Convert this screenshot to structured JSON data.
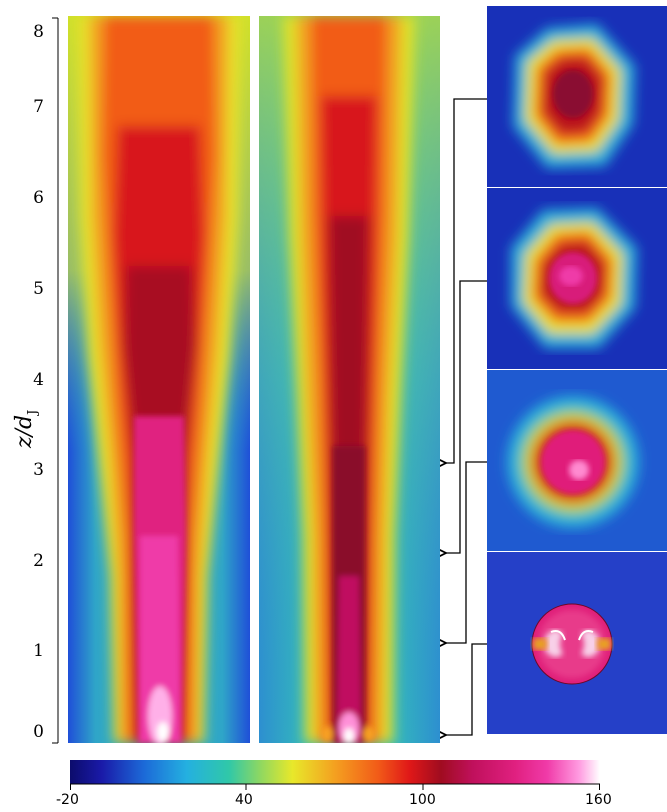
{
  "figure": {
    "y_axis": {
      "label": "z/d",
      "label_sub": "J",
      "ticks": [
        "0",
        "1",
        "2",
        "3",
        "4",
        "5",
        "6",
        "7",
        "8"
      ],
      "range": [
        0,
        8
      ]
    },
    "colorbar": {
      "tick_labels": [
        "-20",
        "40",
        "100",
        "160"
      ],
      "range": [
        -20,
        160
      ]
    },
    "cross_section_heights": [
      3,
      2,
      1,
      0
    ]
  }
}
